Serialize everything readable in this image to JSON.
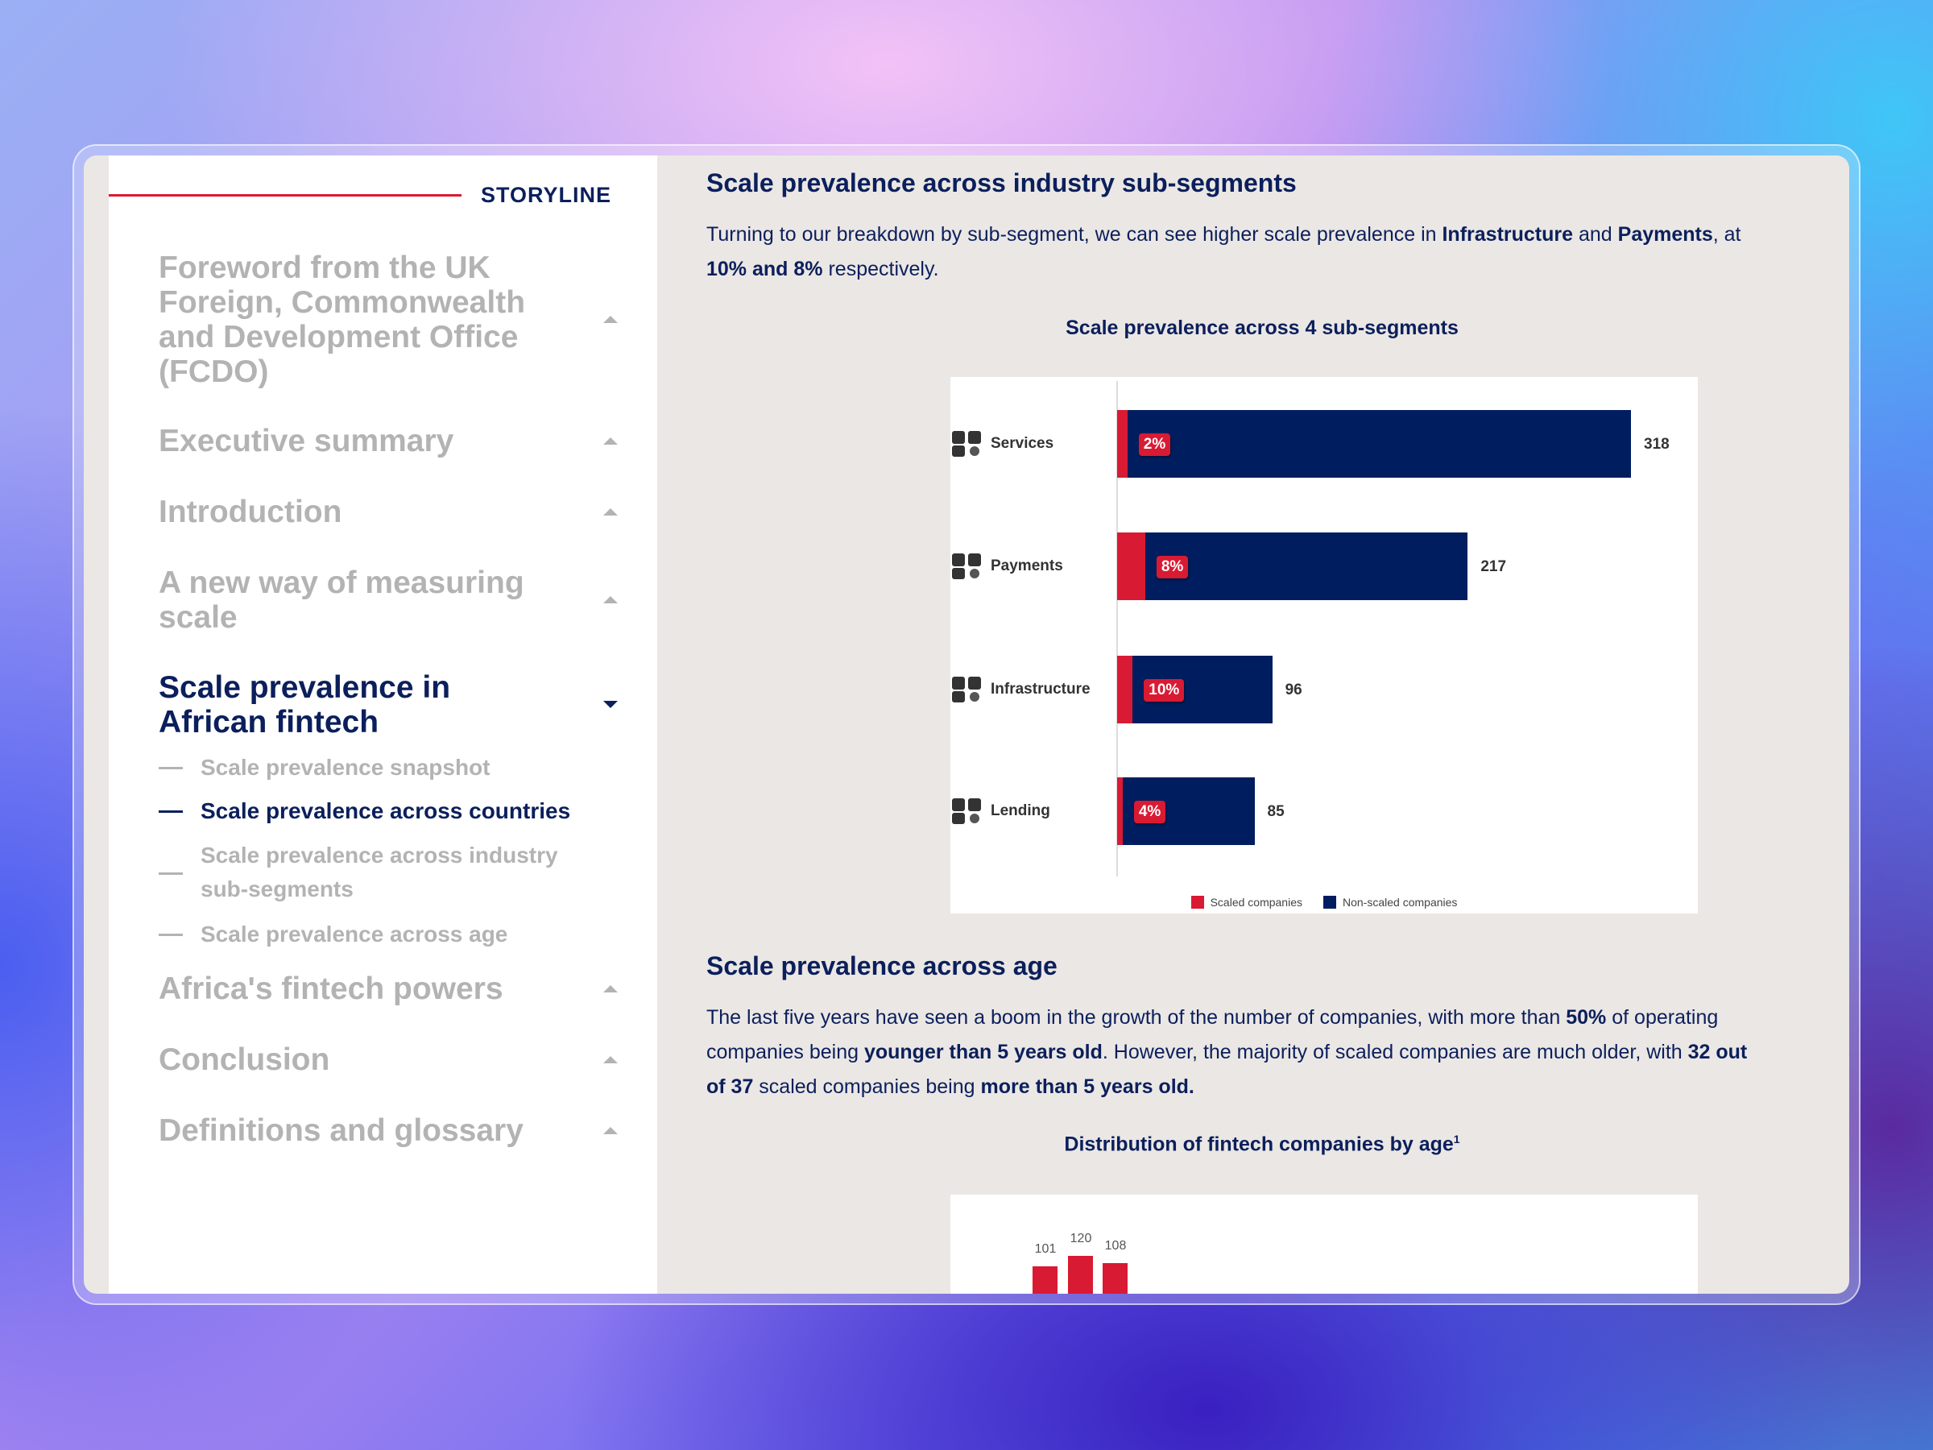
{
  "sidebar": {
    "header": "STORYLINE",
    "items": [
      {
        "label": "Foreword from the UK Foreign, Commonwealth and Development Office (FCDO)"
      },
      {
        "label": "Executive summary"
      },
      {
        "label": "Introduction"
      },
      {
        "label": "A new way of measuring scale"
      },
      {
        "label": "Scale prevalence in African fintech"
      },
      {
        "label": "Africa's fintech powers"
      },
      {
        "label": "Conclusion"
      },
      {
        "label": "Definitions and glossary"
      }
    ],
    "subitems": [
      {
        "label": "Scale prevalence snapshot"
      },
      {
        "label": "Scale prevalence across countries"
      },
      {
        "label": "Scale prevalence across industry sub-segments"
      },
      {
        "label": "Scale prevalence across age"
      }
    ]
  },
  "section1": {
    "title": "Scale prevalence across industry sub-segments",
    "p1": "Turning to our breakdown by sub-segment, we can see higher scale prevalence in ",
    "b1": "Infrastructure",
    "p2": " and ",
    "b2": "Payments",
    "p3": ", at ",
    "b3": "10% and 8%",
    "p4": " respectively."
  },
  "section2": {
    "title": "Scale prevalence across age",
    "p1": "The last five years have seen a boom in the growth of the number of companies, with more than ",
    "b1": "50%",
    "p2": " of operating companies being ",
    "b2": "younger than 5 years old",
    "p3": ". However, the majority of scaled companies are much older, with ",
    "b3": "32 out of 37",
    "p4": " scaled companies being ",
    "b4": "more than 5 years old."
  },
  "chart_data": [
    {
      "type": "bar",
      "orientation": "horizontal",
      "stacked": true,
      "title": "Scale prevalence across 4 sub-segments",
      "categories": [
        "Services",
        "Payments",
        "Infrastructure",
        "Lending"
      ],
      "totals": [
        318,
        217,
        96,
        85
      ],
      "scaled_pct": [
        2,
        8,
        10,
        4
      ],
      "pct_labels": [
        "2%",
        "8%",
        "10%",
        "4%"
      ],
      "total_labels": [
        "318",
        "217",
        "96",
        "85"
      ],
      "legend": [
        "Scaled companies",
        "Non-scaled companies"
      ],
      "colors": [
        "#d91a33",
        "#001e5f"
      ],
      "xlim": [
        0,
        318
      ]
    },
    {
      "type": "bar",
      "title": "Distribution of fintech companies by age",
      "title_sup": "1",
      "values": [
        101,
        120,
        108
      ],
      "labels": [
        "101",
        "120",
        "108"
      ],
      "colors": [
        "#d91a33"
      ]
    }
  ]
}
